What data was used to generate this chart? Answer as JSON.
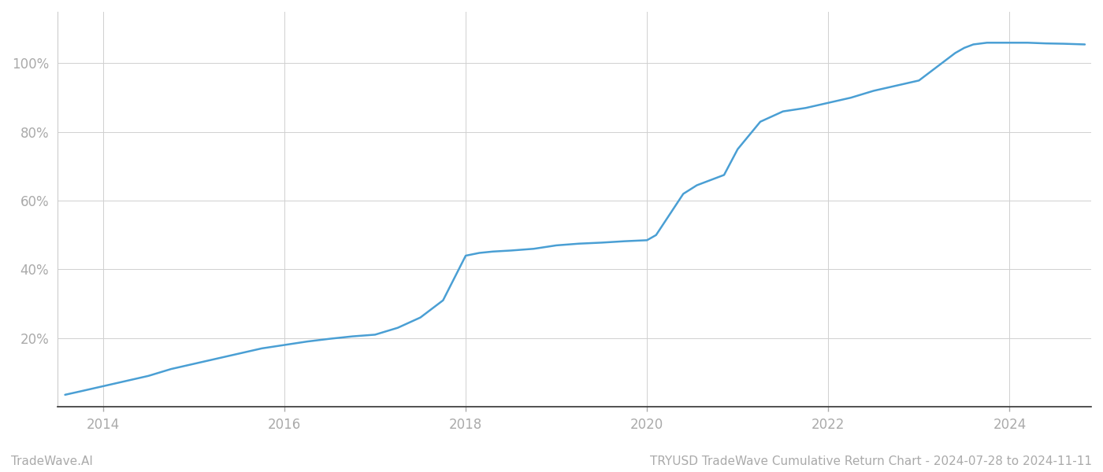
{
  "title": "TRYUSD TradeWave Cumulative Return Chart - 2024-07-28 to 2024-11-11",
  "watermark": "TradeWave.AI",
  "line_color": "#4a9fd4",
  "background_color": "#ffffff",
  "grid_color": "#d0d0d0",
  "x_points": [
    2013.58,
    2013.75,
    2014.0,
    2014.25,
    2014.5,
    2014.75,
    2015.0,
    2015.25,
    2015.5,
    2015.75,
    2016.0,
    2016.25,
    2016.5,
    2016.75,
    2017.0,
    2017.25,
    2017.5,
    2017.75,
    2018.0,
    2018.15,
    2018.3,
    2018.5,
    2018.75,
    2019.0,
    2019.25,
    2019.5,
    2019.75,
    2020.0,
    2020.1,
    2020.25,
    2020.4,
    2020.55,
    2020.7,
    2020.85,
    2021.0,
    2021.25,
    2021.5,
    2021.75,
    2022.0,
    2022.25,
    2022.5,
    2022.75,
    2023.0,
    2023.1,
    2023.25,
    2023.4,
    2023.5,
    2023.6,
    2023.75,
    2024.0,
    2024.2,
    2024.4,
    2024.6,
    2024.83
  ],
  "y_points": [
    3.5,
    4.5,
    6.0,
    7.5,
    9.0,
    11.0,
    12.5,
    14.0,
    15.5,
    17.0,
    18.0,
    19.0,
    19.8,
    20.5,
    21.0,
    23.0,
    26.0,
    31.0,
    44.0,
    44.8,
    45.2,
    45.5,
    46.0,
    47.0,
    47.5,
    47.8,
    48.2,
    48.5,
    50.0,
    56.0,
    62.0,
    64.5,
    66.0,
    67.5,
    75.0,
    83.0,
    86.0,
    87.0,
    88.5,
    90.0,
    92.0,
    93.5,
    95.0,
    97.0,
    100.0,
    103.0,
    104.5,
    105.5,
    106.0,
    106.0,
    106.0,
    105.8,
    105.7,
    105.5
  ],
  "xlim": [
    2013.5,
    2024.9
  ],
  "ylim": [
    0,
    115
  ],
  "yticks": [
    20,
    40,
    60,
    80,
    100
  ],
  "xticks": [
    2014,
    2016,
    2018,
    2020,
    2022,
    2024
  ],
  "title_fontsize": 11,
  "watermark_fontsize": 11,
  "tick_fontsize": 12,
  "line_width": 1.8
}
